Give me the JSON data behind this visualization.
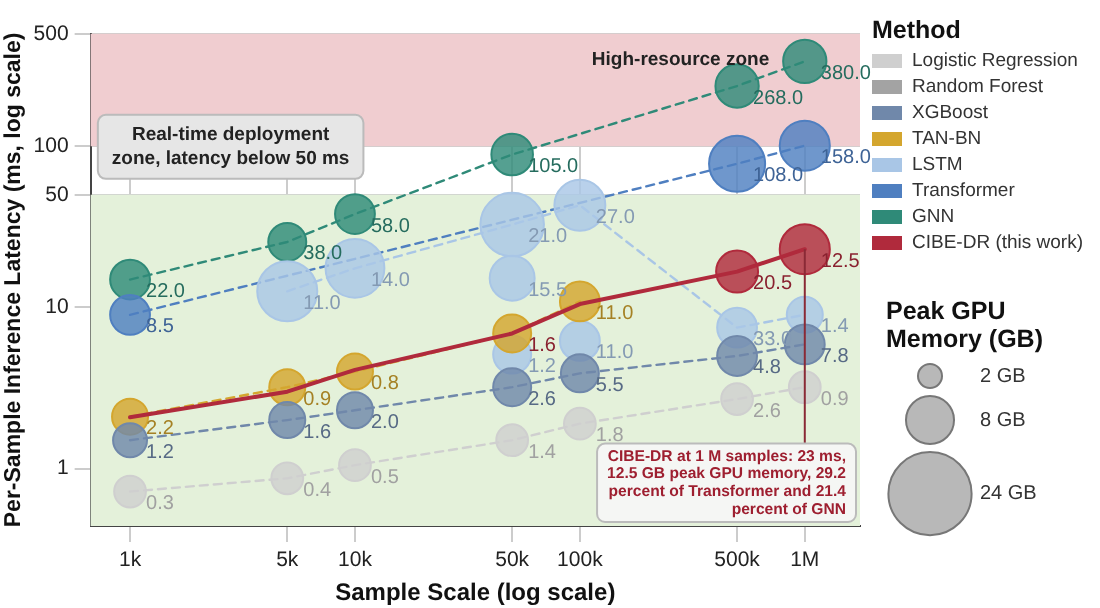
{
  "chart_data": {
    "type": "bubble",
    "xlabel": "Sample Scale (log scale)",
    "ylabel": "Per-Sample Inference Latency (ms, log scale)",
    "legend_title": "Method",
    "log": "xy",
    "grid": true,
    "legend": "right",
    "x": [
      1000,
      5000,
      10000,
      50000,
      100000,
      500000,
      1000000
    ],
    "xlim": [
      668,
      1760000
    ],
    "xticks": [
      {
        "value": 1000,
        "label": "1k"
      },
      {
        "value": 5000,
        "label": "5k"
      },
      {
        "value": 10000,
        "label": "10k"
      },
      {
        "value": 50000,
        "label": "50k"
      },
      {
        "value": 100000,
        "label": "100k"
      },
      {
        "value": 500000,
        "label": "500k"
      },
      {
        "value": 1000000,
        "label": "1M"
      }
    ],
    "ylim": [
      0.44,
      500
    ],
    "yticks": [
      1,
      10,
      50,
      100,
      500
    ],
    "size_legend": [
      {
        "value": 2,
        "label": "2 GB"
      },
      {
        "value": 8,
        "label": "8 GB"
      },
      {
        "value": 24,
        "label": "24 GB"
      }
    ],
    "series": [
      {
        "name": "Logistic Regression",
        "color": "#cfcfcf",
        "line_style": "dashed",
        "values": [
          0.72,
          0.87,
          1.05,
          1.5,
          1.9,
          2.7,
          3.2
        ],
        "sizes": [
          3.5,
          3.5,
          3.5,
          3.5,
          3.5,
          3.5,
          3.5
        ]
      },
      {
        "name": "Random Forest",
        "color": "#a3a3a3",
        "values": [
          null,
          null,
          null,
          null,
          null,
          null,
          null
        ]
      },
      {
        "name": "XGBoost",
        "color": "#7088aa",
        "line_style": "dashed",
        "values": [
          1.5,
          2.0,
          2.3,
          3.2,
          3.9,
          5.0,
          5.9
        ],
        "sizes": [
          4,
          4.5,
          4.5,
          5,
          5,
          5.5,
          5.5
        ]
      },
      {
        "name": "TAN-BN",
        "color": "#d4a62e",
        "line_style": "dashed",
        "x": [
          1000,
          5000,
          10000,
          50000,
          100000
        ],
        "values": [
          2.1,
          3.2,
          4.0,
          6.9,
          10.9
        ],
        "sizes": [
          4.5,
          4.5,
          4.5,
          5,
          5.5
        ]
      },
      {
        "name": "LSTM",
        "color": "#a9c6e6",
        "line_style": "dashed",
        "x": [
          5000,
          10000,
          50000,
          100000,
          500000,
          1000000
        ],
        "values": [
          12.6,
          17.5,
          32.7,
          43.1,
          7.5,
          9.0
        ],
        "sizes": [
          12.5,
          12,
          14,
          9,
          5.5,
          4.5
        ]
      },
      {
        "color": "#a9c6e6",
        "x": [
          50000,
          50000,
          100000
        ],
        "values": [
          15.2,
          5.1,
          6.2
        ],
        "sizes": [
          7,
          5,
          5.5
        ]
      },
      {
        "name": "Transformer",
        "color": "#4f7fc0",
        "line_style": "dashed",
        "x": [
          1000,
          500000,
          1000000
        ],
        "values": [
          9.0,
          78,
          101
        ],
        "sizes": [
          5.5,
          10.9,
          8.7
        ]
      },
      {
        "name": "GNN",
        "color": "#2f8a78",
        "line_style": "dashed",
        "x": [
          1000,
          5000,
          10000,
          50000,
          500000,
          1000000
        ],
        "values": [
          14.9,
          25.5,
          38,
          89,
          237,
          337
        ],
        "sizes": [
          5.5,
          5,
          5.5,
          6,
          6.5,
          6.5
        ]
      },
      {
        "name": "CIBE-DR (this work)",
        "type": "line",
        "color": "#b02a3c",
        "line_style": "solid",
        "marker": "none",
        "values": [
          2.08,
          3.0,
          4.1,
          6.9,
          10.5,
          16.7,
          23
        ]
      },
      {
        "color": "#b02a3c",
        "x": [
          500000,
          1000000
        ],
        "values": [
          16.7,
          23
        ],
        "sizes": [
          6.1,
          8.7
        ]
      }
    ],
    "bands": [
      {
        "axis": "y",
        "from": 0.44,
        "to": 50,
        "label": "Real-time deployment zone, latency below 50 ms",
        "color": "#e4f1da"
      },
      {
        "axis": "y",
        "from": 100,
        "to": 500,
        "label": "High-resource zone",
        "color": "#f0cdd0"
      }
    ],
    "annotations": [
      "Peak GPU Memory (GB)",
      {
        "text": "0.3",
        "x": 1000,
        "y": 0.72
      },
      {
        "text": "0.4",
        "x": 5000,
        "y": 0.87
      },
      {
        "text": "0.5",
        "x": 10000,
        "y": 1.05
      },
      {
        "text": "1.4",
        "x": 50000,
        "y": 1.5
      },
      {
        "text": "1.8",
        "x": 100000,
        "y": 1.9
      },
      {
        "text": "2.6",
        "x": 500000,
        "y": 2.7
      },
      {
        "text": "0.9",
        "x": 1000000,
        "y": 3.2
      },
      {
        "text": "1.2",
        "x": 1000,
        "y": 1.5
      },
      {
        "text": "1.6",
        "x": 5000,
        "y": 2.0
      },
      {
        "text": "2.0",
        "x": 10000,
        "y": 2.3
      },
      {
        "text": "2.6",
        "x": 50000,
        "y": 3.2
      },
      {
        "text": "5.5",
        "x": 100000,
        "y": 3.9
      },
      {
        "text": "4.8",
        "x": 500000,
        "y": 5.0
      },
      {
        "text": "7.8",
        "x": 1000000,
        "y": 5.9
      },
      {
        "text": "2.2",
        "x": 1000,
        "y": 2.1
      },
      {
        "text": "0.9",
        "x": 5000,
        "y": 3.2
      },
      {
        "text": "0.8",
        "x": 10000,
        "y": 4.0
      },
      {
        "text": "1.6",
        "x": 50000,
        "y": 6.9
      },
      {
        "text": "11.0",
        "x": 100000,
        "y": 10.9
      },
      {
        "text": "11.0",
        "x": 5000,
        "y": 12.6
      },
      {
        "text": "14.0",
        "x": 10000,
        "y": 17.5
      },
      {
        "text": "21.0",
        "x": 50000,
        "y": 32.7
      },
      {
        "text": "27.0",
        "x": 100000,
        "y": 43.1
      },
      {
        "text": "33.0",
        "x": 500000,
        "y": 7.5
      },
      {
        "text": "1.4",
        "x": 1000000,
        "y": 9.0
      },
      {
        "text": "15.5",
        "x": 50000,
        "y": 15.2
      },
      {
        "text": "1.2",
        "x": 50000,
        "y": 5.1
      },
      {
        "text": "11.0",
        "x": 100000,
        "y": 6.2
      },
      {
        "text": "8.5",
        "x": 1000,
        "y": 9.0
      },
      {
        "text": "108.0",
        "x": 500000,
        "y": 78
      },
      {
        "text": "158.0",
        "x": 1000000,
        "y": 101
      },
      {
        "text": "22.0",
        "x": 1000,
        "y": 14.9
      },
      {
        "text": "38.0",
        "x": 5000,
        "y": 25.5
      },
      {
        "text": "58.0",
        "x": 10000,
        "y": 38
      },
      {
        "text": "105.0",
        "x": 50000,
        "y": 89
      },
      {
        "text": "268.0",
        "x": 500000,
        "y": 237
      },
      {
        "text": "380.0",
        "x": 1000000,
        "y": 337
      },
      {
        "text": "20.5",
        "x": 500000,
        "y": 16.7
      },
      {
        "text": "12.5",
        "x": 1000000,
        "y": 23
      },
      {
        "text": "CIBE-DR at 1 M samples: 23 ms, 12.5 GB peak GPU memory, 29.2 percent of Transformer and 21.4 percent of GNN",
        "x": 1000000,
        "y": 23
      }
    ]
  }
}
